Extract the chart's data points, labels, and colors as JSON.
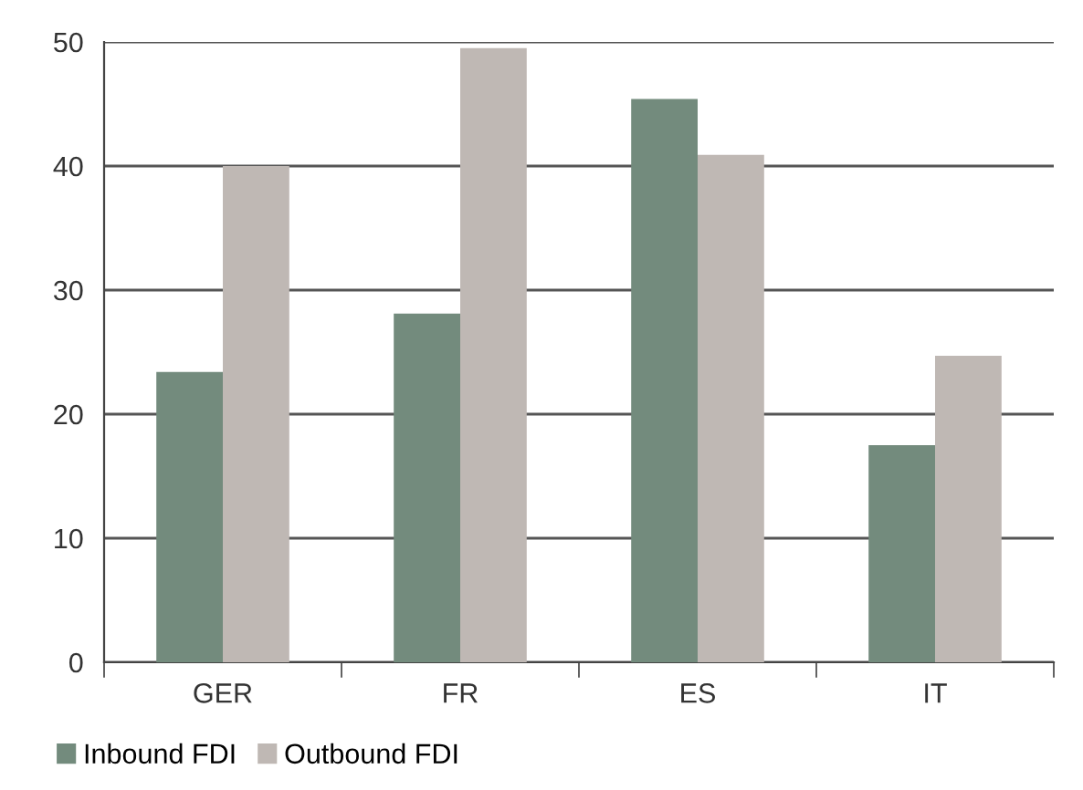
{
  "chart_data": {
    "type": "bar",
    "categories": [
      "GER",
      "FR",
      "ES",
      "IT"
    ],
    "series": [
      {
        "name": "Inbound FDI",
        "color": "#738b7d",
        "values": [
          23.4,
          28.1,
          45.4,
          17.5
        ]
      },
      {
        "name": "Outbound FDI",
        "color": "#bfb8b4",
        "values": [
          40.0,
          49.5,
          40.9,
          24.7
        ]
      }
    ],
    "ylim": [
      0,
      50
    ],
    "yticks": [
      0,
      10,
      20,
      30,
      40,
      50
    ],
    "grid": "y",
    "legend": "bottom left"
  }
}
